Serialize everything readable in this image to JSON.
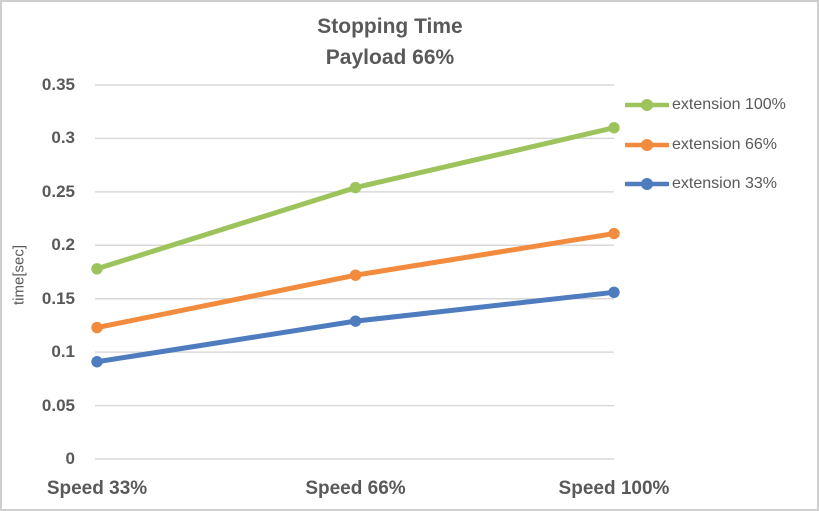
{
  "title": {
    "line1": "Stopping Time",
    "line2": "Payload 66%"
  },
  "chart_data": {
    "type": "line",
    "title": "Stopping Time",
    "subtitle": "Payload 66%",
    "categories": [
      "Speed 33%",
      "Speed 66%",
      "Speed 100%"
    ],
    "series": [
      {
        "name": "extension 100%",
        "values": [
          0.178,
          0.254,
          0.31
        ],
        "color": "#9CC35C"
      },
      {
        "name": "extension 66%",
        "values": [
          0.123,
          0.172,
          0.211
        ],
        "color": "#F28B3D"
      },
      {
        "name": "extension 33%",
        "values": [
          0.091,
          0.129,
          0.156
        ],
        "color": "#4E7CBF"
      }
    ],
    "xlabel": "",
    "ylabel": "time[sec]",
    "ylim": [
      0,
      0.35
    ],
    "ytick_step": 0.05,
    "ytick_labels": [
      "0",
      "0.05",
      "0.1",
      "0.15",
      "0.2",
      "0.25",
      "0.3",
      "0.35"
    ],
    "grid": "horizontal",
    "legend_position": "right",
    "marker": "circle"
  },
  "colors": {
    "text": "#595959",
    "gridline": "#D9D9D9",
    "border": "#CFCFCF",
    "background": "#FFFFFF"
  }
}
